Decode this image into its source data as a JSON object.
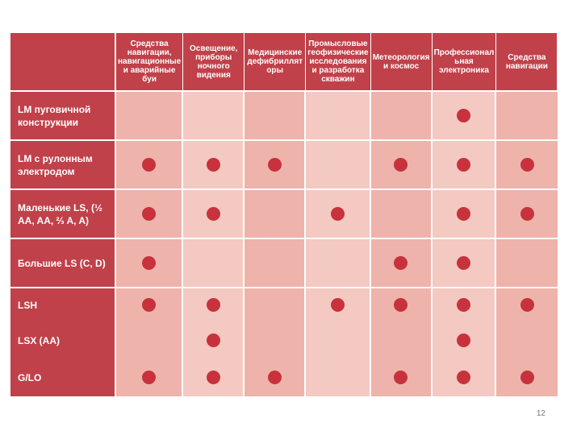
{
  "columns": [
    "Средства навигации, навигационные и аварийные буи",
    "Освещение, приборы ночного видения",
    "Медицинские дефибриллят оры",
    "Промысловые геофизические исследования и разработка скважин",
    "Метеорология и космос",
    "Профессионал ьная электроника",
    "Средства навигации"
  ],
  "rows": [
    {
      "label": "LM пуговичной конструкции",
      "marks": [
        false,
        false,
        false,
        false,
        false,
        true,
        false
      ]
    },
    {
      "label": "LM с рулонным электродом",
      "marks": [
        true,
        true,
        true,
        false,
        true,
        true,
        true
      ]
    },
    {
      "label": "Маленькие LS, (½ AA, AA, ⅔ A, A)",
      "marks": [
        true,
        true,
        false,
        true,
        false,
        true,
        true
      ]
    },
    {
      "label": "Большие LS (C, D)",
      "marks": [
        true,
        false,
        false,
        false,
        true,
        true,
        false
      ]
    },
    {
      "label": "LSH",
      "marks": [
        true,
        true,
        false,
        true,
        true,
        true,
        true
      ]
    },
    {
      "label": "LSX  (AA)",
      "marks": [
        false,
        true,
        false,
        false,
        false,
        true,
        false
      ]
    },
    {
      "label": "G/LO",
      "marks": [
        true,
        true,
        true,
        false,
        true,
        true,
        true
      ]
    }
  ],
  "page_number": "12",
  "colors": {
    "header_bg": "#c0414a",
    "cell_light": "#f3c9c1",
    "cell_dark": "#eeb3aa",
    "dot": "#c8323c"
  }
}
